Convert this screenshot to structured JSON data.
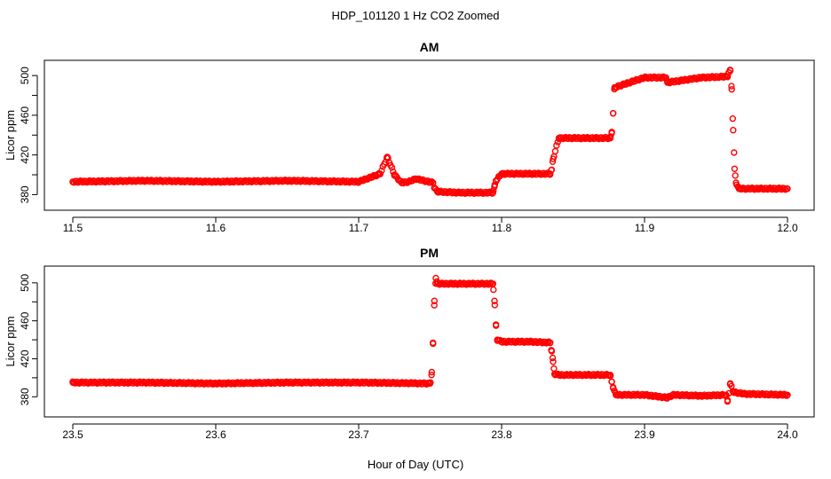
{
  "figure": {
    "title": "HDP_101120  1 Hz CO2 Zoomed",
    "xlabel": "Hour of Day (UTC)"
  },
  "colors": {
    "points": "#ff0000",
    "axes": "#000000",
    "background": "#ffffff"
  },
  "chart_data": [
    {
      "type": "scatter",
      "title": "AM",
      "xlabel": "",
      "ylabel": "Licor ppm",
      "xlim": [
        11.5,
        12.0
      ],
      "ylim": [
        375,
        510
      ],
      "x_ticks": [
        11.5,
        11.6,
        11.7,
        11.8,
        11.9,
        12.0
      ],
      "x_tick_labels": [
        "11.5",
        "11.6",
        "11.7",
        "11.8",
        "11.9",
        "12.0"
      ],
      "y_ticks": [
        380,
        420,
        460,
        500
      ],
      "y_tick_labels": [
        "380",
        "420",
        "460",
        "500"
      ],
      "grid": false,
      "marker": "open-circle",
      "series": [
        {
          "x": [
            11.5,
            11.55,
            11.6,
            11.65,
            11.7,
            11.715,
            11.72,
            11.725,
            11.73,
            11.735,
            11.74,
            11.752,
            11.753,
            11.755,
            11.77,
            11.794,
            11.795,
            11.796,
            11.8,
            11.82,
            11.834,
            11.835,
            11.836,
            11.84,
            11.86,
            11.876,
            11.877,
            11.878,
            11.879,
            11.9,
            11.915,
            11.916,
            11.94,
            11.958,
            11.959,
            11.96,
            11.961,
            11.962,
            11.963,
            11.964,
            11.966,
            11.98,
            12.0
          ],
          "y": [
            393,
            394,
            393,
            394,
            393,
            401,
            418,
            400,
            392,
            393,
            396,
            392,
            387,
            383,
            382,
            382,
            388,
            394,
            401,
            401,
            401,
            405,
            416,
            437,
            437,
            437,
            442,
            462,
            488,
            498,
            498,
            493,
            498,
            499,
            503,
            505,
            486,
            445,
            406,
            392,
            386,
            386,
            386
          ]
        }
      ]
    },
    {
      "type": "scatter",
      "title": "PM",
      "xlabel": "Hour of Day (UTC)",
      "ylabel": "Licor ppm",
      "xlim": [
        23.5,
        24.0
      ],
      "ylim": [
        370,
        512
      ],
      "x_ticks": [
        23.5,
        23.6,
        23.7,
        23.8,
        23.9,
        24.0
      ],
      "x_tick_labels": [
        "23.5",
        "23.6",
        "23.7",
        "23.8",
        "23.9",
        "24.0"
      ],
      "y_ticks": [
        380,
        420,
        460,
        500
      ],
      "y_tick_labels": [
        "380",
        "420",
        "460",
        "500"
      ],
      "grid": false,
      "marker": "open-circle",
      "series": [
        {
          "x": [
            23.5,
            23.55,
            23.6,
            23.65,
            23.7,
            23.75,
            23.751,
            23.752,
            23.753,
            23.754,
            23.755,
            23.77,
            23.794,
            23.795,
            23.796,
            23.797,
            23.8,
            23.82,
            23.834,
            23.835,
            23.836,
            23.837,
            23.84,
            23.86,
            23.876,
            23.877,
            23.878,
            23.88,
            23.9,
            23.916,
            23.92,
            23.94,
            23.957,
            23.958,
            23.96,
            23.962,
            23.97,
            24.0
          ],
          "y": [
            395,
            395,
            394,
            395,
            395,
            394,
            403,
            436,
            481,
            505,
            499,
            499,
            499,
            481,
            456,
            440,
            438,
            438,
            437,
            428,
            417,
            404,
            403,
            403,
            403,
            396,
            390,
            382,
            382,
            379,
            382,
            381,
            382,
            375,
            394,
            385,
            383,
            382
          ]
        }
      ]
    }
  ]
}
